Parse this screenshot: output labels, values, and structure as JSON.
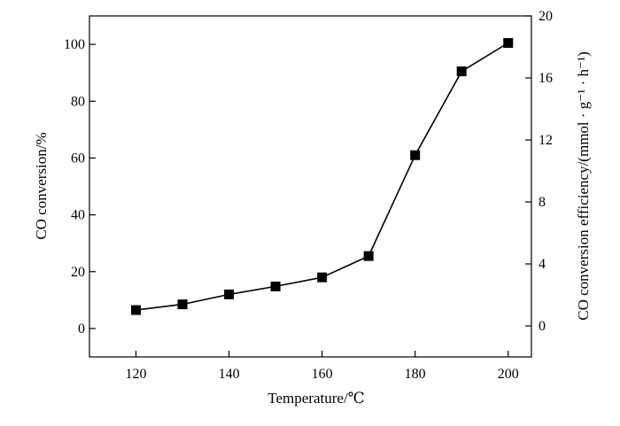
{
  "chart_data": {
    "type": "line",
    "title": "",
    "xlabel": "Temperature/℃",
    "ylabel": "CO conversion/%",
    "y2label": "CO conversion efficiency/(mmol · g⁻¹ · h⁻¹)",
    "xlim": [
      110,
      205
    ],
    "ylim": [
      -10,
      110
    ],
    "y2lim": [
      -2,
      20
    ],
    "x_ticks": [
      120,
      140,
      160,
      180,
      200
    ],
    "y_ticks": [
      0,
      20,
      40,
      60,
      80,
      100
    ],
    "y2_ticks": [
      0,
      4,
      8,
      12,
      16,
      20
    ],
    "x_tick_labels": [
      "120",
      "140",
      "160",
      "180",
      "200"
    ],
    "y_tick_labels": [
      "0",
      "20",
      "40",
      "60",
      "80",
      "100"
    ],
    "y2_tick_labels": [
      "0",
      "4",
      "8",
      "12",
      "16",
      "20"
    ],
    "grid": false,
    "series": [
      {
        "marker": "square",
        "color": "#000000",
        "x": [
          120,
          130,
          140,
          150,
          160,
          170,
          180,
          190,
          200
        ],
        "y": [
          6.5,
          8.5,
          12,
          14.8,
          18,
          25.5,
          61,
          90.5,
          100.5
        ]
      }
    ]
  }
}
